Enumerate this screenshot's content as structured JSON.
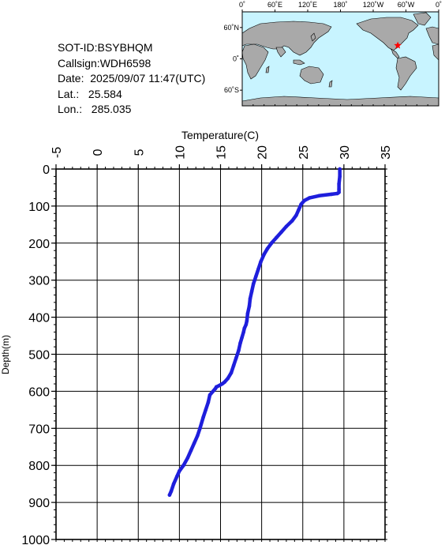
{
  "info": {
    "sot_id": "SOT-ID:BSYBHQM",
    "callsign": "Callsign:WDH6598",
    "date": "Date:  2025/09/07 11:47(UTC)",
    "lat": "Lat.:   25.584",
    "lon": "Lon.:   285.035"
  },
  "map": {
    "lon_labels": [
      "0˚",
      "60˚E",
      "120˚E",
      "180˚",
      "120˚W",
      "60˚W",
      "0˚"
    ],
    "lat_labels": [
      "60˚N",
      "0˚",
      "60˚S"
    ],
    "ocean_color": "#c8f4ff",
    "land_color": "#a9a9a9",
    "marker": {
      "lon": 285.035,
      "lat": 25.584,
      "color": "#ff0000"
    }
  },
  "colors": {
    "profile": "#1e1edc"
  },
  "chart_data": {
    "type": "line",
    "title": "",
    "xlabel": "Temperature(C)",
    "ylabel": "Depth(m)",
    "xlim": [
      -5,
      35
    ],
    "ylim": [
      0,
      1000
    ],
    "y_inverted": true,
    "x_axis_position": "top",
    "grid": true,
    "x_ticks": [
      "-5",
      "0",
      "5",
      "10",
      "15",
      "20",
      "25",
      "30",
      "35"
    ],
    "y_ticks": [
      "0",
      "100",
      "200",
      "300",
      "400",
      "500",
      "600",
      "700",
      "800",
      "900",
      "1000"
    ],
    "series": [
      {
        "x": [
          29.5,
          29.5,
          29.4,
          29.4,
          29.4,
          29.2,
          28.5,
          27.0,
          25.8,
          25.2,
          24.8,
          24.5,
          24.2,
          23.7,
          23.0,
          22.4,
          21.8,
          21.2,
          20.7,
          20.3,
          19.9,
          19.6,
          19.3,
          19.0,
          18.8,
          18.6,
          18.5,
          18.3,
          18.2,
          18.1,
          17.9,
          17.8,
          17.6,
          17.4,
          17.2,
          16.9,
          16.6,
          16.3,
          15.9,
          15.5,
          15.2,
          14.8,
          14.5,
          14.4,
          13.7,
          13.5,
          13.2,
          12.9,
          12.5,
          12.2,
          11.8,
          11.4,
          11.0,
          10.5,
          10.0,
          9.7,
          9.3,
          9.0,
          8.8
        ],
        "y": [
          0,
          20,
          40,
          55,
          63,
          66,
          68,
          72,
          78,
          85,
          95,
          110,
          125,
          140,
          155,
          170,
          185,
          200,
          215,
          230,
          250,
          270,
          290,
          310,
          330,
          350,
          370,
          390,
          410,
          420,
          430,
          440,
          455,
          470,
          490,
          510,
          530,
          550,
          565,
          575,
          580,
          585,
          588,
          592,
          610,
          630,
          650,
          670,
          700,
          720,
          740,
          760,
          780,
          800,
          815,
          830,
          850,
          870,
          880
        ]
      }
    ]
  }
}
